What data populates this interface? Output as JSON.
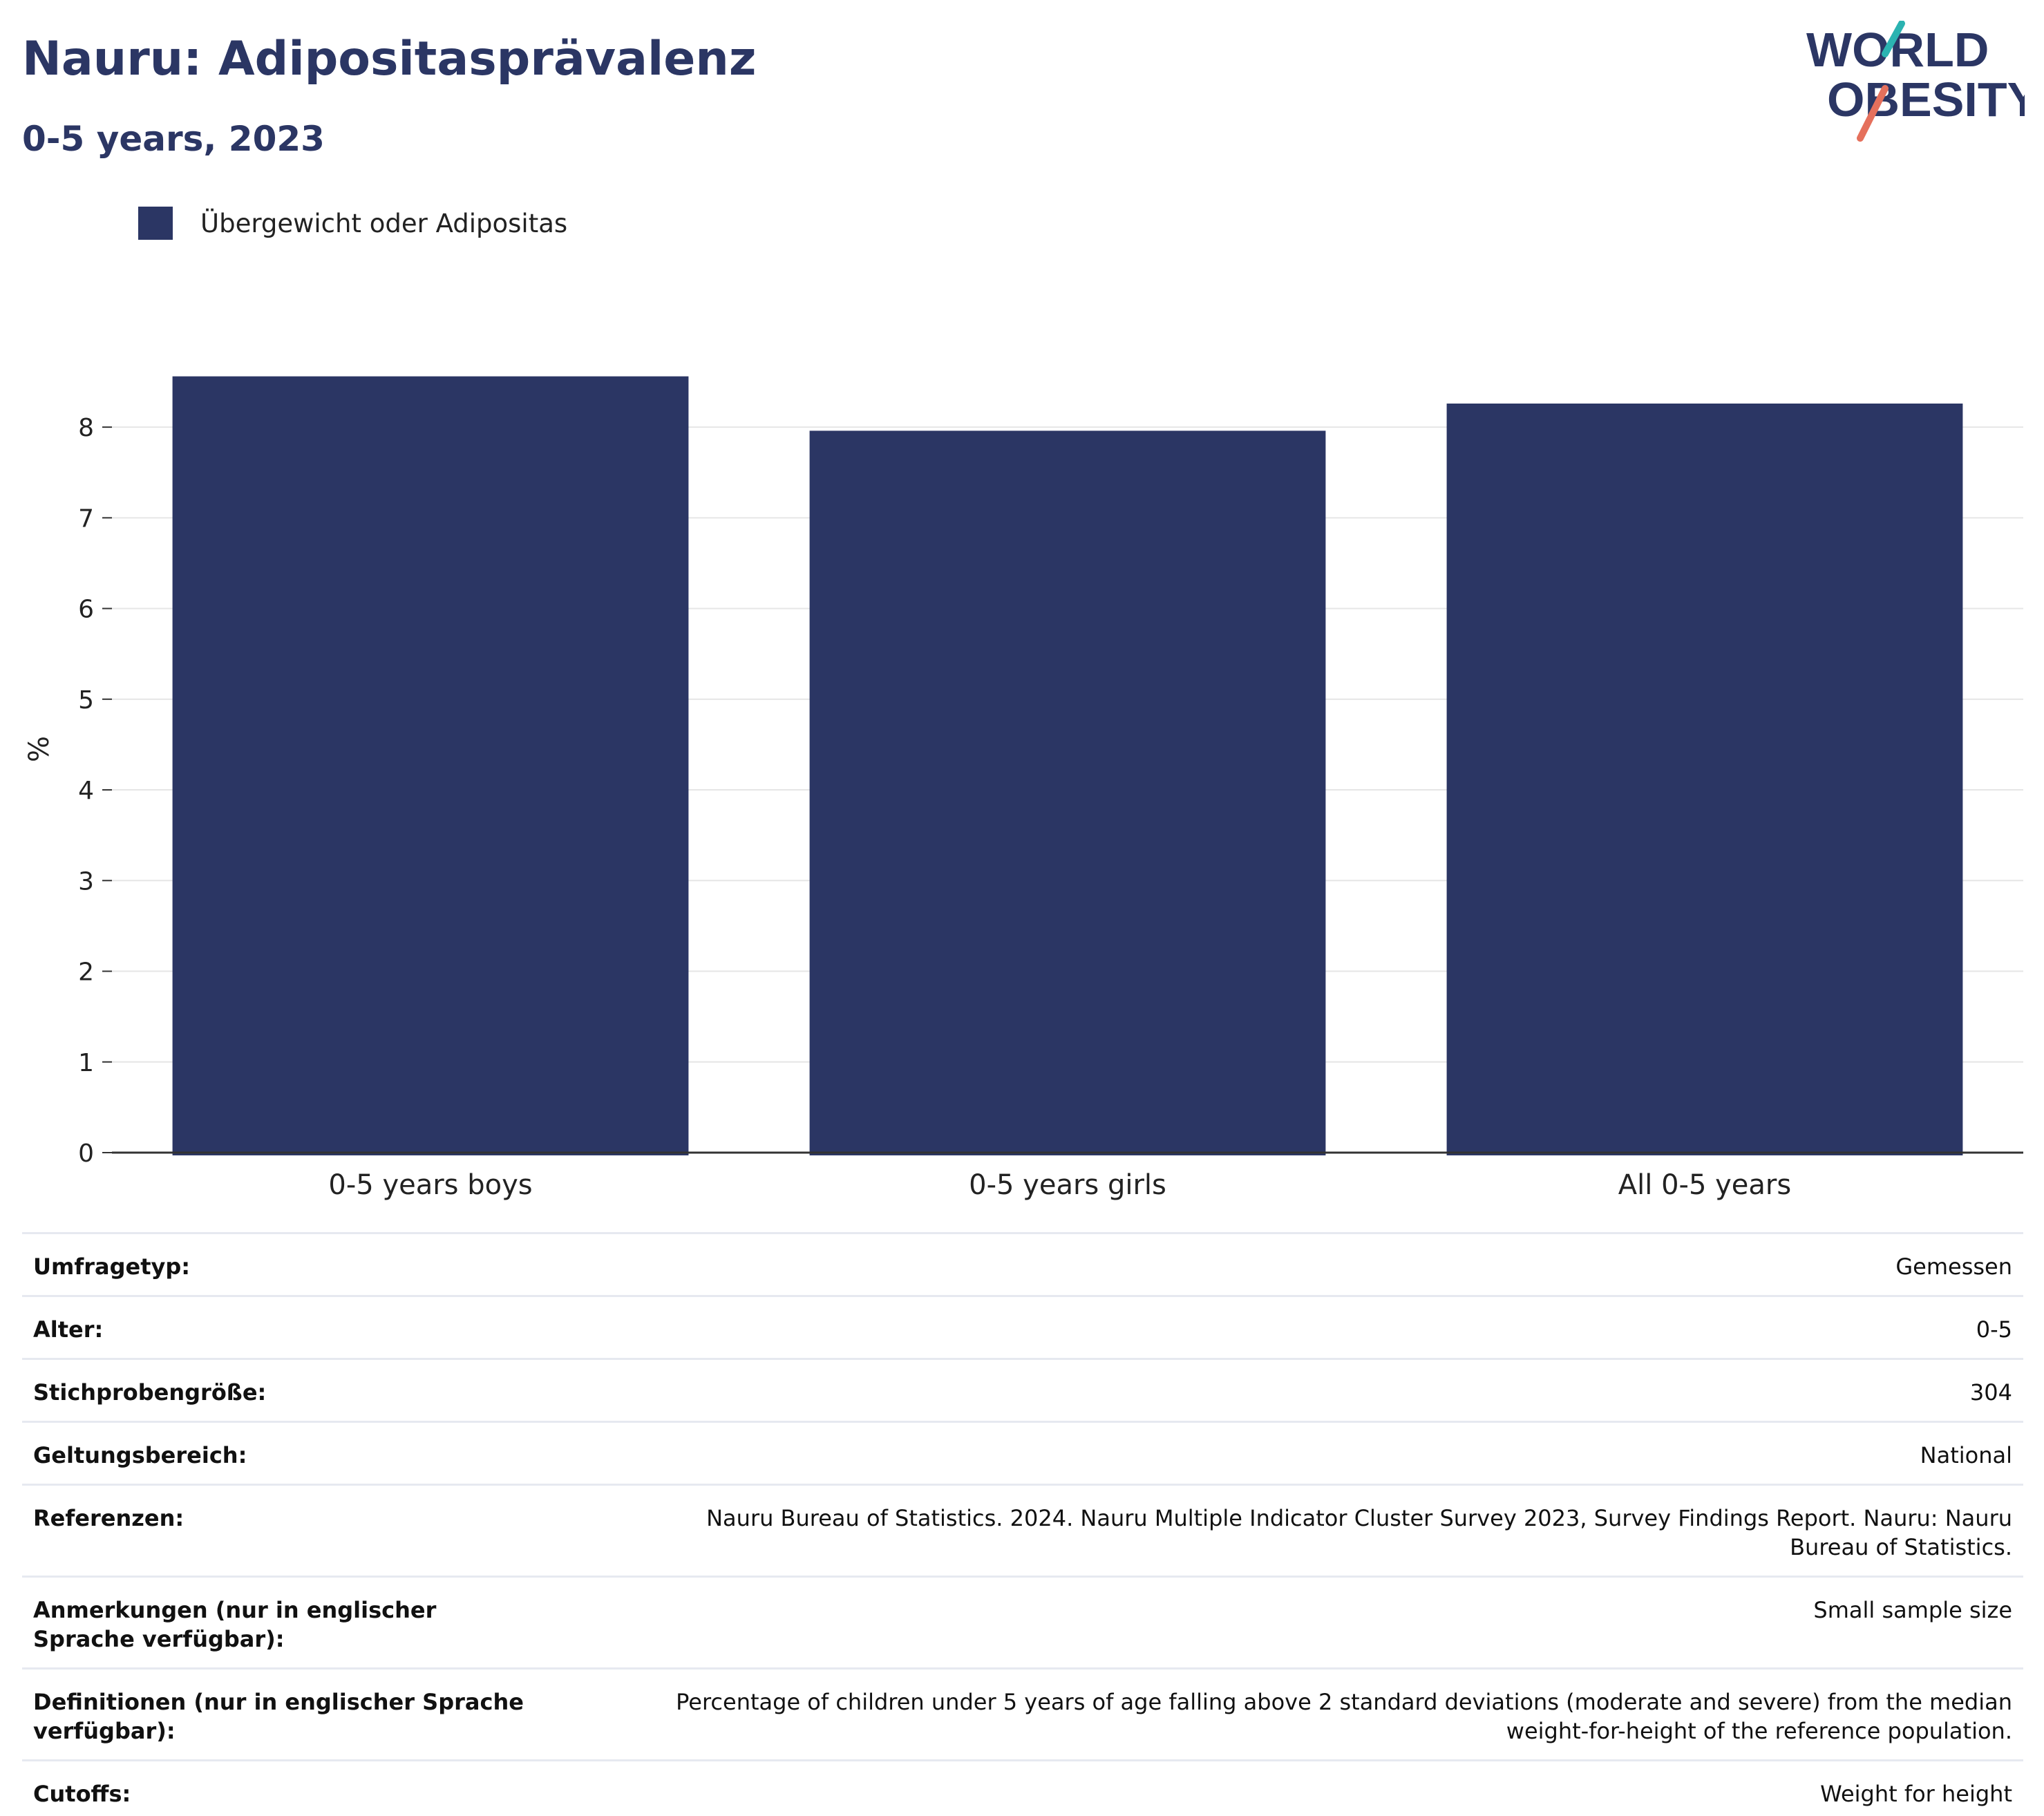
{
  "header": {
    "title": "Nauru: Adipositasprävalenz",
    "subtitle": "0-5 years, 2023"
  },
  "logo": {
    "line1": "WORLD",
    "line2": "OBESITY",
    "colors": {
      "text": "#2b3664",
      "slash_top": "#2bb3b1",
      "slash_bottom": "#e5705c"
    }
  },
  "colors": {
    "bar": "#2b3664",
    "grid": "#e6e6e6",
    "axis": "#333333",
    "text": "#222222"
  },
  "chart_data": {
    "type": "bar",
    "categories": [
      "0-5 years boys",
      "0-5 years girls",
      "All 0-5 years"
    ],
    "series": [
      {
        "name": "Übergewicht oder Adipositas",
        "values": [
          8.56,
          7.96,
          8.26
        ]
      }
    ],
    "ylabel": "%",
    "ylim": [
      0,
      8.9
    ],
    "yticks": [
      0,
      1,
      2,
      3,
      4,
      5,
      6,
      7,
      8
    ],
    "grid": true,
    "legend_position": "top-left"
  },
  "info": [
    {
      "key": "Umfragetyp:",
      "value": "Gemessen"
    },
    {
      "key": "Alter:",
      "value": "0-5"
    },
    {
      "key": "Stichprobengröße:",
      "value": "304"
    },
    {
      "key": "Geltungsbereich:",
      "value": "National"
    },
    {
      "key": "Referenzen:",
      "value": "Nauru Bureau of Statistics. 2024. Nauru Multiple Indicator Cluster Survey 2023, Survey Findings Report. Nauru: Nauru Bureau of Statistics."
    },
    {
      "key": "Anmerkungen (nur in englischer Sprache verfügbar):",
      "value": "Small sample size"
    },
    {
      "key": "Definitionen (nur in englischer Sprache verfügbar):",
      "value": "Percentage of children under 5 years of age falling above 2 standard deviations (moderate and severe) from the median weight-for-height of the reference population."
    },
    {
      "key": "Cutoffs:",
      "value": "Weight for height"
    }
  ]
}
